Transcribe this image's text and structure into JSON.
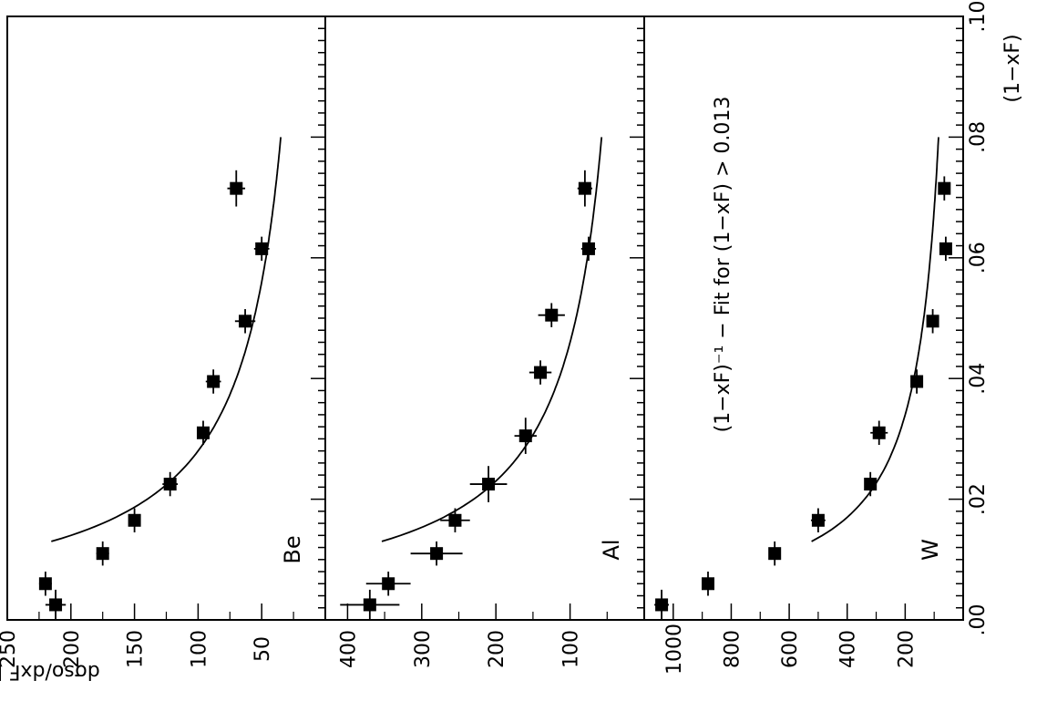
{
  "figure": {
    "ylabel": "dσso/dxF  [mb]",
    "xlabel": "(1−xF)",
    "annotation": "(1−xF)⁻¹ − Fit for (1−xF) > 0.013"
  },
  "chart_data": {
    "type": "scatter",
    "x_axis": {
      "label": "(1−xF)",
      "range": [
        0.0,
        0.1
      ],
      "ticks": [
        0.0,
        0.02,
        0.04,
        0.06,
        0.08,
        0.1
      ],
      "tick_labels": [
        ".00",
        ".02",
        ".04",
        ".06",
        ".08",
        ".10"
      ]
    },
    "ylabel": "dσso/dxF  [mb]",
    "annotation": "(1−xF)⁻¹ − Fit for (1−xF) > 0.013",
    "fit": {
      "form": "A/(1-xF)",
      "x_range": [
        0.013,
        0.08
      ]
    },
    "panels": [
      {
        "name": "Be",
        "y_range": [
          0,
          250
        ],
        "ticks": [
          50,
          100,
          150,
          200,
          250
        ],
        "tick_labels": [
          "50",
          "100",
          "150",
          "200",
          "250"
        ],
        "points": [
          {
            "x": 0.0025,
            "y": 212,
            "xerr": 0.0025,
            "yerr": 8
          },
          {
            "x": 0.006,
            "y": 220,
            "xerr": 0.002,
            "yerr": 5
          },
          {
            "x": 0.011,
            "y": 175,
            "xerr": 0.002,
            "yerr": 5
          },
          {
            "x": 0.0165,
            "y": 150,
            "xerr": 0.002,
            "yerr": 4
          },
          {
            "x": 0.0225,
            "y": 122,
            "xerr": 0.002,
            "yerr": 6
          },
          {
            "x": 0.031,
            "y": 96,
            "xerr": 0.002,
            "yerr": 5
          },
          {
            "x": 0.0395,
            "y": 88,
            "xerr": 0.002,
            "yerr": 6
          },
          {
            "x": 0.0495,
            "y": 63,
            "xerr": 0.002,
            "yerr": 8
          },
          {
            "x": 0.0615,
            "y": 50,
            "xerr": 0.002,
            "yerr": 6
          },
          {
            "x": 0.0715,
            "y": 70,
            "xerr": 0.003,
            "yerr": 7
          }
        ],
        "fit_A": 2.8
      },
      {
        "name": "Al",
        "y_range": [
          0,
          430
        ],
        "ticks": [
          100,
          200,
          300,
          400
        ],
        "tick_labels": [
          "100",
          "200",
          "300",
          "400"
        ],
        "points": [
          {
            "x": 0.0025,
            "y": 370,
            "xerr": 0.0025,
            "yerr": 40
          },
          {
            "x": 0.006,
            "y": 345,
            "xerr": 0.002,
            "yerr": 30
          },
          {
            "x": 0.011,
            "y": 280,
            "xerr": 0.002,
            "yerr": 35
          },
          {
            "x": 0.0165,
            "y": 255,
            "xerr": 0.002,
            "yerr": 20
          },
          {
            "x": 0.0225,
            "y": 210,
            "xerr": 0.003,
            "yerr": 25
          },
          {
            "x": 0.0305,
            "y": 160,
            "xerr": 0.003,
            "yerr": 15
          },
          {
            "x": 0.041,
            "y": 140,
            "xerr": 0.002,
            "yerr": 15
          },
          {
            "x": 0.0505,
            "y": 125,
            "xerr": 0.002,
            "yerr": 18
          },
          {
            "x": 0.0615,
            "y": 75,
            "xerr": 0.002,
            "yerr": 10
          },
          {
            "x": 0.0715,
            "y": 80,
            "xerr": 0.003,
            "yerr": 10
          }
        ],
        "fit_A": 4.6
      },
      {
        "name": "W",
        "y_range": [
          0,
          1100
        ],
        "ticks": [
          200,
          400,
          600,
          800,
          1000
        ],
        "tick_labels": [
          "200",
          "400",
          "600",
          "800",
          "1000"
        ],
        "points": [
          {
            "x": 0.0025,
            "y": 1040,
            "xerr": 0.0025,
            "yerr": 25
          },
          {
            "x": 0.006,
            "y": 880,
            "xerr": 0.002,
            "yerr": 20
          },
          {
            "x": 0.011,
            "y": 650,
            "xerr": 0.002,
            "yerr": 20
          },
          {
            "x": 0.0165,
            "y": 500,
            "xerr": 0.002,
            "yerr": 25
          },
          {
            "x": 0.0225,
            "y": 320,
            "xerr": 0.002,
            "yerr": 20
          },
          {
            "x": 0.031,
            "y": 290,
            "xerr": 0.002,
            "yerr": 30
          },
          {
            "x": 0.0395,
            "y": 160,
            "xerr": 0.002,
            "yerr": 15
          },
          {
            "x": 0.0495,
            "y": 105,
            "xerr": 0.002,
            "yerr": 15
          },
          {
            "x": 0.0615,
            "y": 60,
            "xerr": 0.002,
            "yerr": 15
          },
          {
            "x": 0.0715,
            "y": 65,
            "xerr": 0.002,
            "yerr": 20
          }
        ],
        "fit_A": 6.8
      }
    ]
  }
}
